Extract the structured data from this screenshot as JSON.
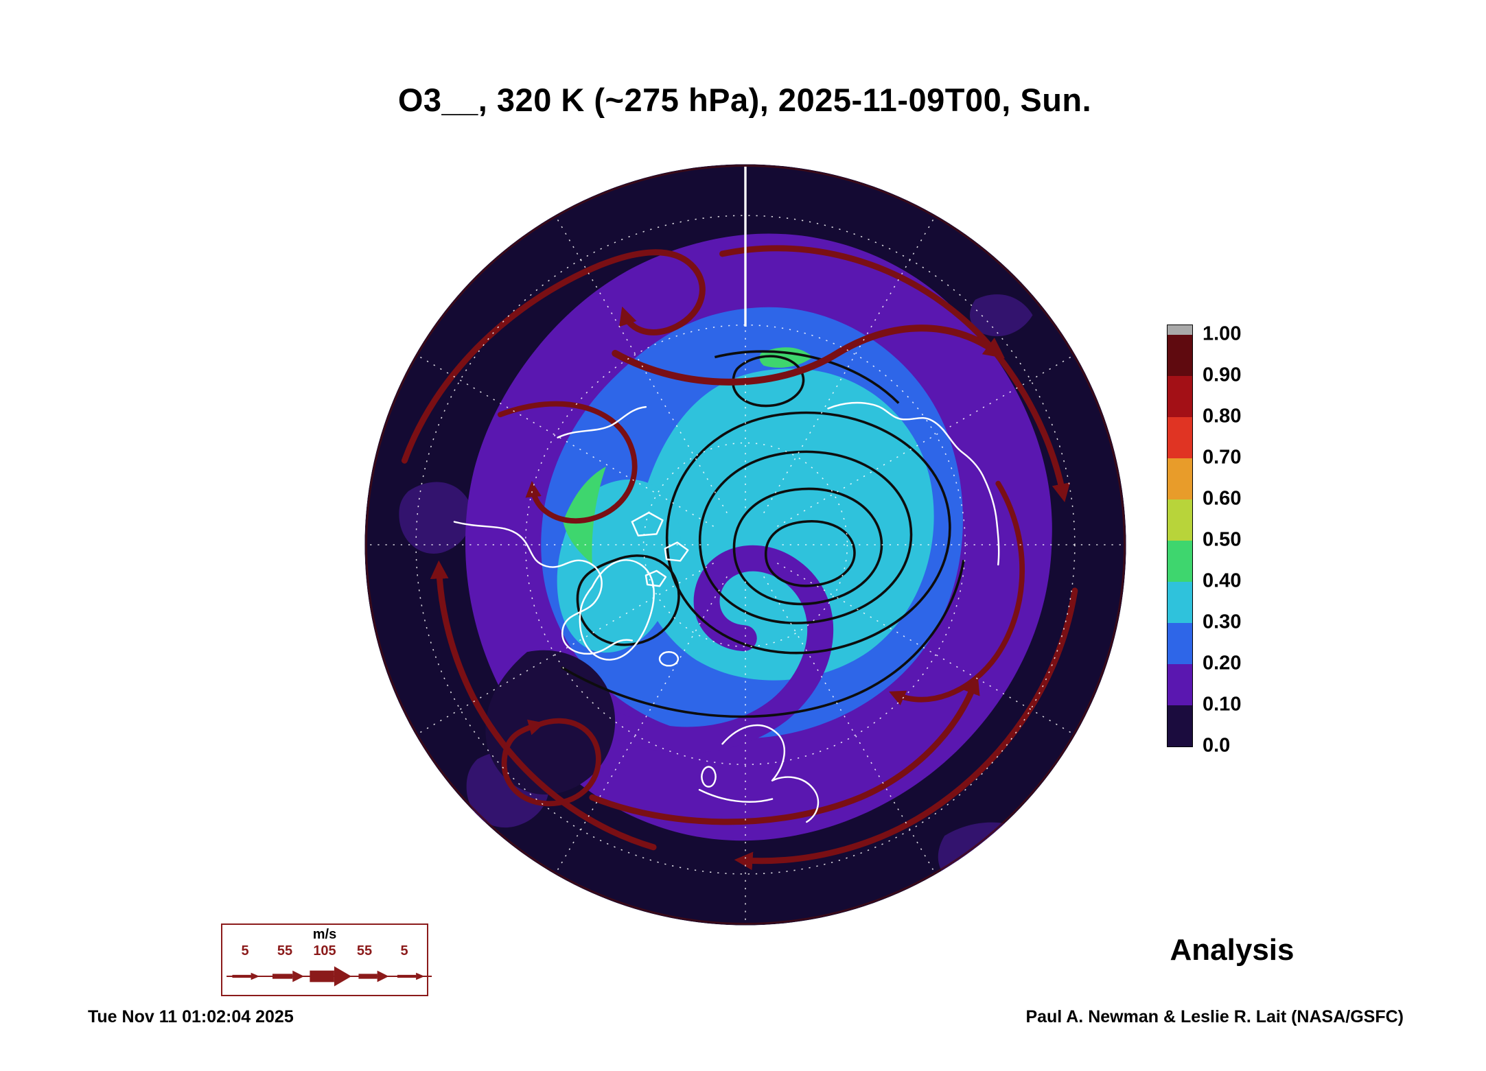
{
  "title": "O3__, 320 K (~275 hPa), 2025-11-09T00, Sun.",
  "colorbar": {
    "ticks": [
      "1.00",
      "0.90",
      "0.80",
      "0.70",
      "0.60",
      "0.50",
      "0.40",
      "0.30",
      "0.20",
      "0.10",
      "0.0"
    ],
    "cap_color": "#a9a9a9",
    "segment_colors_top_to_bottom": [
      "#5f0a0f",
      "#a31016",
      "#e03423",
      "#e89c2a",
      "#b8d43a",
      "#3ed66e",
      "#2fc2dc",
      "#2e66e8",
      "#5a17b0",
      "#1b0c3e"
    ]
  },
  "wind_legend": {
    "unit": "m/s",
    "values": [
      "5",
      "55",
      "105",
      "55",
      "5"
    ],
    "accent_color": "#8b1a1a"
  },
  "annotations": {
    "analysis_label": "Analysis"
  },
  "footer": {
    "timestamp": "Tue Nov 11 01:02:04 2025",
    "credit": "Paul A. Newman & Leslie R. Lait (NASA/GSFC)"
  },
  "chart_data": {
    "type": "heatmap",
    "title": "O3__, 320 K (~275 hPa), 2025-11-09T00, Sun.",
    "field": "O3 (ozone)",
    "surface": "320 K isentropic (~275 hPa)",
    "valid_time": "2025-11-09T00",
    "day": "Sun.",
    "product": "Analysis",
    "projection": "north polar stereographic (Northern Hemisphere disk)",
    "colorbar": {
      "min": 0.0,
      "max": 1.0,
      "ticks": [
        1.0,
        0.9,
        0.8,
        0.7,
        0.6,
        0.5,
        0.4,
        0.3,
        0.2,
        0.1,
        0.0
      ],
      "segment_colors_top_to_bottom": [
        "#5f0a0f",
        "#a31016",
        "#e03423",
        "#e89c2a",
        "#b8d43a",
        "#3ed66e",
        "#2fc2dc",
        "#2e66e8",
        "#5a17b0",
        "#1b0c3e"
      ]
    },
    "dominant_field_values": "most of the hemisphere between 0.0 and 0.5: dark navy (0.0-0.1) at low latitudes near rim, purple (0.1-0.2) mid band, blue (0.2-0.3) and cyan (0.3-0.4) over the polar cap, small green streaks (0.4-0.5)",
    "wind_speed_scale_ms": [
      5,
      55,
      105,
      55,
      5
    ],
    "overlays": [
      "wind streamlines with arrowheads (dark red over low values, black over polar cap)",
      "white coastlines",
      "white dotted latitude/longitude graticule"
    ],
    "generated": "Tue Nov 11 01:02:04 2025",
    "credit": "Paul A. Newman & Leslie R. Lait (NASA/GSFC)"
  }
}
